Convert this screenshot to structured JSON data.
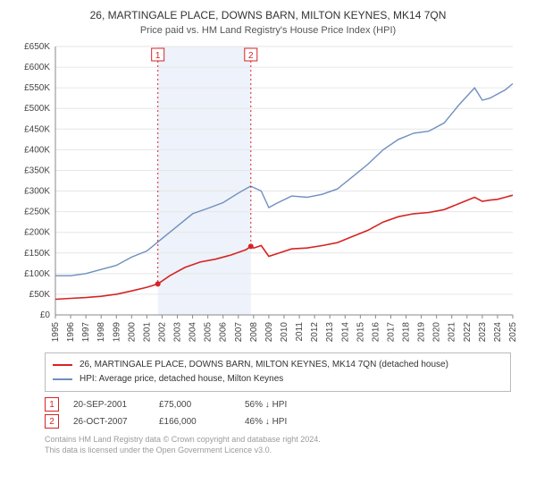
{
  "header": {
    "title": "26, MARTINGALE PLACE, DOWNS BARN, MILTON KEYNES, MK14 7QN",
    "subtitle": "Price paid vs. HM Land Registry's House Price Index (HPI)"
  },
  "chart": {
    "type": "line",
    "background_color": "#ffffff",
    "grid_color": "#e6e6e6",
    "axis_color": "#888888",
    "ylim": [
      0,
      650000
    ],
    "ytick_step": 50000,
    "ytick_prefix": "£",
    "ytick_suffix": "K",
    "x_start_year": 1995,
    "x_end_year": 2025,
    "price_paid_band": {
      "from": 2001.72,
      "to": 2007.82,
      "fill": "#eef2fa"
    },
    "series": {
      "property": {
        "color": "#d62424",
        "line_width": 1.6,
        "label": "26, MARTINGALE PLACE, DOWNS BARN, MILTON KEYNES, MK14 7QN (detached house)",
        "points": [
          [
            1995.0,
            38000
          ],
          [
            1996.0,
            40000
          ],
          [
            1997.0,
            42000
          ],
          [
            1998.0,
            45000
          ],
          [
            1999.0,
            50000
          ],
          [
            2000.0,
            58000
          ],
          [
            2001.0,
            67000
          ],
          [
            2001.72,
            75000
          ],
          [
            2002.5,
            95000
          ],
          [
            2003.5,
            115000
          ],
          [
            2004.5,
            128000
          ],
          [
            2005.5,
            135000
          ],
          [
            2006.5,
            145000
          ],
          [
            2007.5,
            158000
          ],
          [
            2007.82,
            166000
          ],
          [
            2008.0,
            162000
          ],
          [
            2008.5,
            168000
          ],
          [
            2009.0,
            142000
          ],
          [
            2009.5,
            148000
          ],
          [
            2010.5,
            160000
          ],
          [
            2011.5,
            162000
          ],
          [
            2012.5,
            168000
          ],
          [
            2013.5,
            175000
          ],
          [
            2014.5,
            190000
          ],
          [
            2015.5,
            205000
          ],
          [
            2016.5,
            225000
          ],
          [
            2017.5,
            238000
          ],
          [
            2018.5,
            245000
          ],
          [
            2019.5,
            248000
          ],
          [
            2020.5,
            255000
          ],
          [
            2021.5,
            270000
          ],
          [
            2022.5,
            285000
          ],
          [
            2023.0,
            275000
          ],
          [
            2023.5,
            278000
          ],
          [
            2024.0,
            280000
          ],
          [
            2024.5,
            285000
          ],
          [
            2025.0,
            290000
          ]
        ]
      },
      "hpi": {
        "color": "#6e8fbf",
        "line_width": 1.4,
        "label": "HPI: Average price, detached house, Milton Keynes",
        "points": [
          [
            1995.0,
            95000
          ],
          [
            1996.0,
            95000
          ],
          [
            1997.0,
            100000
          ],
          [
            1998.0,
            110000
          ],
          [
            1999.0,
            120000
          ],
          [
            2000.0,
            140000
          ],
          [
            2001.0,
            155000
          ],
          [
            2002.0,
            185000
          ],
          [
            2003.0,
            215000
          ],
          [
            2004.0,
            245000
          ],
          [
            2005.0,
            258000
          ],
          [
            2006.0,
            272000
          ],
          [
            2007.0,
            295000
          ],
          [
            2007.8,
            312000
          ],
          [
            2008.5,
            300000
          ],
          [
            2009.0,
            260000
          ],
          [
            2009.5,
            270000
          ],
          [
            2010.5,
            288000
          ],
          [
            2011.5,
            285000
          ],
          [
            2012.5,
            292000
          ],
          [
            2013.5,
            305000
          ],
          [
            2014.5,
            335000
          ],
          [
            2015.5,
            365000
          ],
          [
            2016.5,
            400000
          ],
          [
            2017.5,
            425000
          ],
          [
            2018.5,
            440000
          ],
          [
            2019.5,
            445000
          ],
          [
            2020.5,
            465000
          ],
          [
            2021.5,
            510000
          ],
          [
            2022.5,
            550000
          ],
          [
            2023.0,
            520000
          ],
          [
            2023.5,
            525000
          ],
          [
            2024.0,
            535000
          ],
          [
            2024.5,
            545000
          ],
          [
            2025.0,
            560000
          ]
        ]
      }
    },
    "markers": [
      {
        "id": "1",
        "year": 2001.72,
        "value": 75000
      },
      {
        "id": "2",
        "year": 2007.82,
        "value": 166000
      }
    ]
  },
  "legend": {
    "items": [
      {
        "color": "#d62424",
        "label_path": "chart.series.property.label"
      },
      {
        "color": "#6e8fbf",
        "label_path": "chart.series.hpi.label"
      }
    ]
  },
  "notes": [
    {
      "id": "1",
      "date": "20-SEP-2001",
      "price": "£75,000",
      "pct": "56%",
      "arrow": "↓",
      "tag": "HPI"
    },
    {
      "id": "2",
      "date": "26-OCT-2007",
      "price": "£166,000",
      "pct": "46%",
      "arrow": "↓",
      "tag": "HPI"
    }
  ],
  "footer": {
    "line1": "Contains HM Land Registry data © Crown copyright and database right 2024.",
    "line2": "This data is licensed under the Open Government Licence v3.0."
  }
}
